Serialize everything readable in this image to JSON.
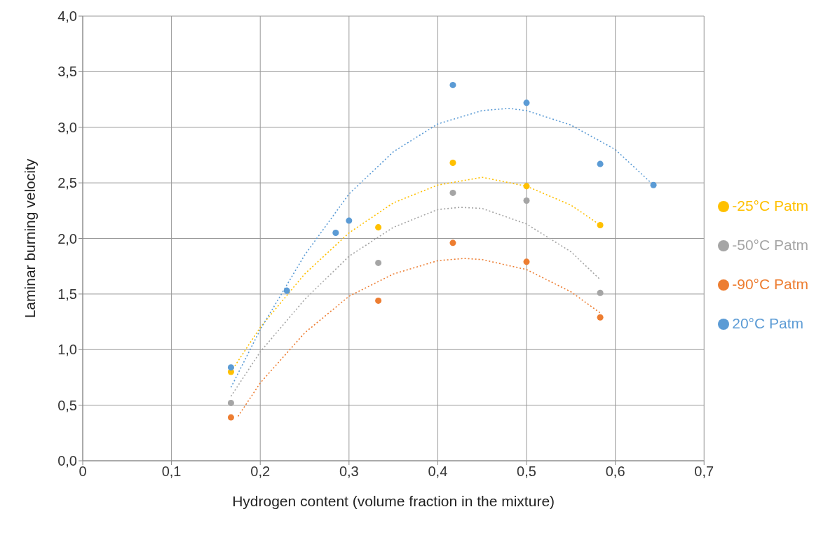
{
  "chart_data": {
    "type": "scatter",
    "xlabel": "Hydrogen content (volume fraction in the mixture)",
    "ylabel": "Laminar burning velocity",
    "xlim": [
      0,
      0.7
    ],
    "xticks": [
      0,
      {
        "value": 0.1,
        "label": "0,1"
      },
      {
        "value": 0.2,
        "label": "0,2"
      },
      {
        "value": 0.3,
        "label": "0,3"
      },
      {
        "value": 0.4,
        "label": "0,4"
      },
      {
        "value": 0.5,
        "label": "0,5"
      },
      {
        "value": 0.6,
        "label": "0,6"
      },
      {
        "value": 0.7,
        "label": "0,7"
      }
    ],
    "ylim": [
      0,
      4
    ],
    "yticks": [
      {
        "value": 0,
        "label": "0,0"
      },
      {
        "value": 0.5,
        "label": "0,5"
      },
      {
        "value": 1,
        "label": "1,0"
      },
      {
        "value": 1.5,
        "label": "1,5"
      },
      {
        "value": 2,
        "label": "2,0"
      },
      {
        "value": 2.5,
        "label": "2,5"
      },
      {
        "value": 3,
        "label": "3,0"
      },
      {
        "value": 3.5,
        "label": "3,5"
      },
      {
        "value": 4,
        "label": "4,0"
      }
    ],
    "grid": true,
    "legend": "right",
    "marker": "circle",
    "series": [
      {
        "name": "-90°C Patm",
        "color": "#ed7d31",
        "x": [
          0.167,
          0.333,
          0.417,
          0.5,
          0.583
        ],
        "values": [
          0.39,
          1.44,
          1.96,
          1.79,
          1.29
        ]
      },
      {
        "name": "-50°C Patm",
        "color": "#a5a5a5",
        "x": [
          0.167,
          0.333,
          0.417,
          0.5,
          0.583
        ],
        "values": [
          0.52,
          1.78,
          2.41,
          2.34,
          1.51
        ]
      },
      {
        "name": "-25°C Patm",
        "color": "#ffc000",
        "x": [
          0.167,
          0.333,
          0.417,
          0.5,
          0.583
        ],
        "values": [
          0.8,
          2.1,
          2.68,
          2.47,
          2.12
        ]
      },
      {
        "name": "20°C Patm",
        "color": "#5b9bd5",
        "x": [
          0.167,
          0.23,
          0.285,
          0.3,
          0.417,
          0.5,
          0.583,
          0.643
        ],
        "values": [
          0.84,
          1.53,
          2.05,
          2.16,
          3.38,
          3.22,
          2.67,
          2.48
        ]
      },
      {
        "type": "line",
        "line_style": "dotted",
        "marker": "none",
        "color": "#ed7d31",
        "x": [
          0.175,
          0.2,
          0.25,
          0.3,
          0.35,
          0.4,
          0.43,
          0.45,
          0.5,
          0.55,
          0.583
        ],
        "values": [
          0.4,
          0.7,
          1.15,
          1.48,
          1.68,
          1.8,
          1.82,
          1.81,
          1.72,
          1.52,
          1.33
        ]
      },
      {
        "type": "line",
        "line_style": "dotted",
        "marker": "none",
        "color": "#a5a5a5",
        "x": [
          0.167,
          0.2,
          0.25,
          0.3,
          0.35,
          0.4,
          0.425,
          0.45,
          0.5,
          0.55,
          0.583
        ],
        "values": [
          0.58,
          0.98,
          1.45,
          1.84,
          2.1,
          2.26,
          2.28,
          2.27,
          2.13,
          1.88,
          1.63
        ]
      },
      {
        "type": "line",
        "line_style": "dotted",
        "marker": "none",
        "color": "#ffc000",
        "x": [
          0.167,
          0.2,
          0.25,
          0.3,
          0.35,
          0.4,
          0.45,
          0.5,
          0.55,
          0.583
        ],
        "values": [
          0.8,
          1.2,
          1.68,
          2.05,
          2.32,
          2.48,
          2.55,
          2.47,
          2.3,
          2.12
        ]
      },
      {
        "type": "line",
        "line_style": "dotted",
        "marker": "none",
        "color": "#5b9bd5",
        "x": [
          0.167,
          0.2,
          0.25,
          0.3,
          0.35,
          0.4,
          0.45,
          0.48,
          0.5,
          0.55,
          0.6,
          0.643
        ],
        "values": [
          0.66,
          1.18,
          1.85,
          2.4,
          2.78,
          3.03,
          3.15,
          3.17,
          3.15,
          3.02,
          2.8,
          2.48
        ]
      }
    ]
  }
}
